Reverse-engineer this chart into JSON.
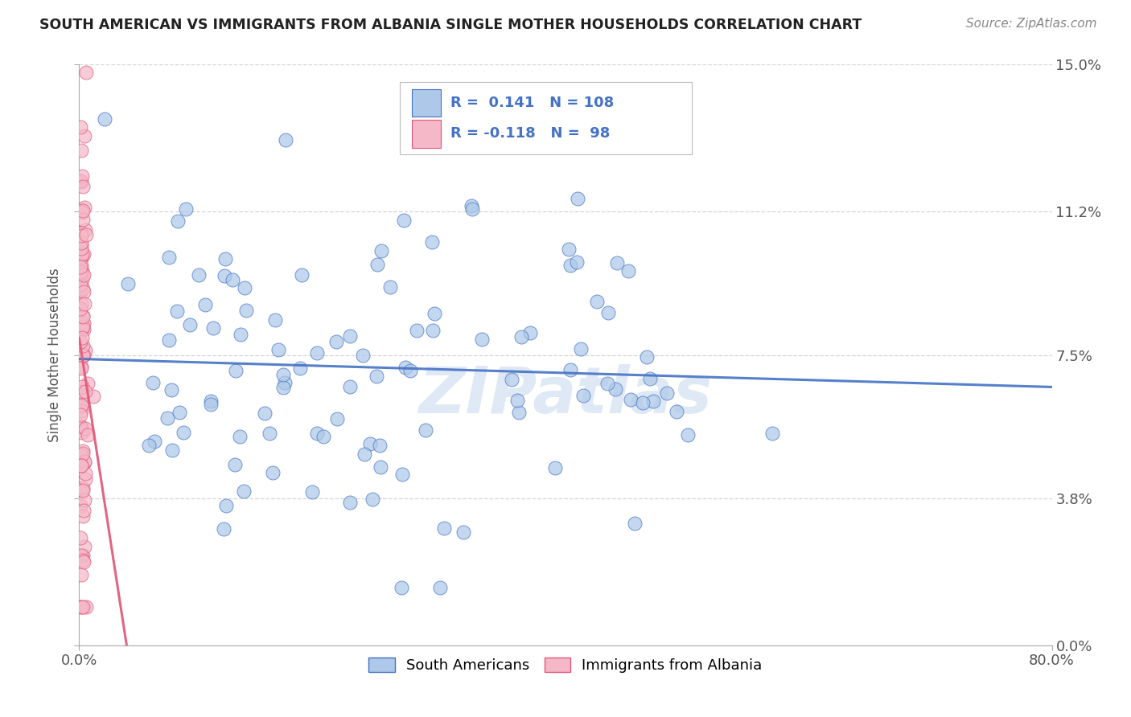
{
  "title": "SOUTH AMERICAN VS IMMIGRANTS FROM ALBANIA SINGLE MOTHER HOUSEHOLDS CORRELATION CHART",
  "source": "Source: ZipAtlas.com",
  "ylabel": "Single Mother Households",
  "xlabel": "",
  "legend1_label": "South Americans",
  "legend2_label": "Immigrants from Albania",
  "R1": 0.141,
  "N1": 108,
  "R2": -0.118,
  "N2": 98,
  "xlim": [
    0.0,
    0.8
  ],
  "ylim": [
    0.0,
    0.15
  ],
  "yticks": [
    0.0,
    0.038,
    0.075,
    0.112,
    0.15
  ],
  "ytick_labels": [
    "0.0%",
    "3.8%",
    "7.5%",
    "11.2%",
    "15.0%"
  ],
  "xtick_labels": [
    "0.0%",
    "80.0%"
  ],
  "color_blue": "#adc8e8",
  "color_pink": "#f4b8c8",
  "line_blue": "#4472c4",
  "line_pink": "#e05878",
  "trendline_pink_dashed": "#f0b0c0",
  "watermark": "ZIPatlas",
  "background_color": "#ffffff",
  "grid_color": "#cccccc"
}
